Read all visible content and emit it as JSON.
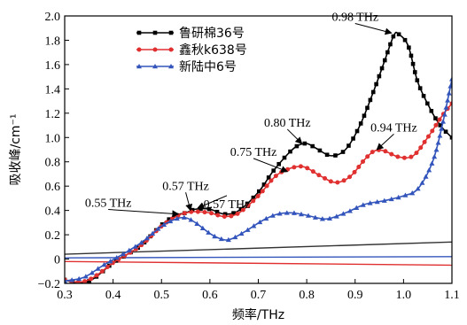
{
  "chart_data": {
    "type": "line",
    "xlabel": "频率/THz",
    "ylabel": "吸收峰/cm⁻¹",
    "xlim": [
      0.3,
      1.1
    ],
    "ylim": [
      -0.2,
      2.0
    ],
    "xticks": [
      "0.3",
      "0.4",
      "0.5",
      "0.6",
      "0.7",
      "0.8",
      "0.9",
      "1.0",
      "1.1"
    ],
    "yticks": [
      "−0.2",
      "0",
      "0.2",
      "0.4",
      "0.6",
      "0.8",
      "1.0",
      "1.2",
      "1.4",
      "1.6",
      "1.8",
      "2.0"
    ],
    "legend_position": "top-left",
    "series": [
      {
        "name": "鲁研棉36号",
        "color": "#000000",
        "marker": "square",
        "x": [
          0.3,
          0.33,
          0.36,
          0.4,
          0.43,
          0.46,
          0.5,
          0.53,
          0.55,
          0.57,
          0.6,
          0.63,
          0.66,
          0.7,
          0.73,
          0.76,
          0.78,
          0.8,
          0.82,
          0.85,
          0.88,
          0.91,
          0.94,
          0.96,
          0.98,
          0.99,
          1.01,
          1.03,
          1.06,
          1.08,
          1.1
        ],
        "y": [
          -0.17,
          -0.2,
          -0.16,
          -0.03,
          0.04,
          0.12,
          0.28,
          0.36,
          0.38,
          0.41,
          0.41,
          0.37,
          0.4,
          0.55,
          0.72,
          0.86,
          0.93,
          0.95,
          0.91,
          0.85,
          0.9,
          1.1,
          1.4,
          1.62,
          1.84,
          1.85,
          1.75,
          1.45,
          1.2,
          1.08,
          1.0
        ]
      },
      {
        "name": "鑫秋k638号",
        "color": "#e03030",
        "marker": "circle",
        "x": [
          0.3,
          0.33,
          0.36,
          0.4,
          0.43,
          0.46,
          0.5,
          0.53,
          0.55,
          0.57,
          0.6,
          0.63,
          0.66,
          0.7,
          0.73,
          0.75,
          0.78,
          0.8,
          0.83,
          0.86,
          0.89,
          0.92,
          0.94,
          0.96,
          0.99,
          1.02,
          1.05,
          1.08,
          1.1
        ],
        "y": [
          -0.17,
          -0.19,
          -0.15,
          -0.03,
          0.04,
          0.12,
          0.27,
          0.35,
          0.38,
          0.39,
          0.38,
          0.35,
          0.38,
          0.52,
          0.66,
          0.72,
          0.76,
          0.75,
          0.68,
          0.63,
          0.68,
          0.82,
          0.89,
          0.89,
          0.84,
          0.85,
          1.0,
          1.18,
          1.28
        ]
      },
      {
        "name": "新陆中6号",
        "color": "#3355bb",
        "marker": "triangle",
        "x": [
          0.3,
          0.34,
          0.38,
          0.42,
          0.46,
          0.5,
          0.53,
          0.55,
          0.57,
          0.6,
          0.62,
          0.64,
          0.67,
          0.71,
          0.74,
          0.77,
          0.8,
          0.84,
          0.88,
          0.92,
          0.96,
          1.0,
          1.03,
          1.06,
          1.08,
          1.1
        ],
        "y": [
          -0.18,
          -0.15,
          -0.05,
          0.04,
          0.14,
          0.27,
          0.33,
          0.34,
          0.3,
          0.21,
          0.17,
          0.16,
          0.22,
          0.32,
          0.37,
          0.38,
          0.36,
          0.33,
          0.38,
          0.45,
          0.48,
          0.52,
          0.58,
          0.8,
          1.1,
          1.48
        ]
      }
    ],
    "baselines": [
      {
        "color": "#333333",
        "x": [
          0.3,
          1.1
        ],
        "y": [
          0.04,
          0.14
        ]
      },
      {
        "color": "#e03030",
        "x": [
          0.3,
          1.1
        ],
        "y": [
          -0.02,
          -0.05
        ]
      },
      {
        "color": "#3355bb",
        "x": [
          0.3,
          1.1
        ],
        "y": [
          0.01,
          0.02
        ]
      }
    ],
    "annotations": [
      {
        "text": "0.98 THz",
        "point": [
          0.975,
          1.86
        ],
        "label": [
          0.9,
          1.96
        ]
      },
      {
        "text": "0.80 THz",
        "point": [
          0.79,
          0.95
        ],
        "label": [
          0.76,
          1.09
        ]
      },
      {
        "text": "0.94 THz",
        "point": [
          0.945,
          0.9
        ],
        "label": [
          0.98,
          1.05
        ]
      },
      {
        "text": "0.75 THz",
        "point": [
          0.76,
          0.72
        ],
        "label": [
          0.69,
          0.85
        ]
      },
      {
        "text": "0.57 THz",
        "point": [
          0.56,
          0.4
        ],
        "label": [
          0.55,
          0.57
        ]
      },
      {
        "text": "0.55 THz",
        "point": [
          0.535,
          0.37
        ],
        "label": [
          0.39,
          0.43
        ]
      },
      {
        "text": "0.57 THz",
        "point": [
          0.575,
          0.42
        ],
        "label": [
          0.635,
          0.42
        ]
      }
    ]
  }
}
